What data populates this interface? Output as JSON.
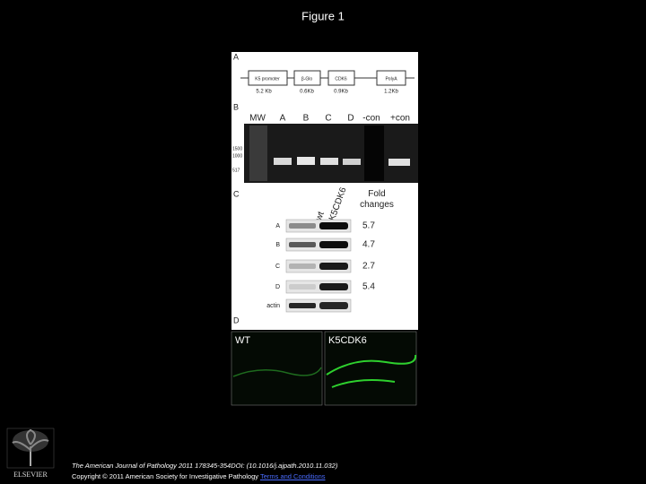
{
  "title": "Figure 1",
  "figure": {
    "panel_a": {
      "label": "A",
      "elements": [
        "K5 promoter",
        "β-Glo",
        "CDK6",
        "PolyA"
      ],
      "sizes": [
        "5.2 Kb",
        "0.6Kb",
        "0.9Kb",
        "1.2Kb"
      ]
    },
    "panel_b": {
      "label": "B",
      "lanes": [
        "MW",
        "A",
        "B",
        "C",
        "D",
        "-con",
        "+con"
      ],
      "markers": [
        "1500",
        "1000",
        "517"
      ]
    },
    "panel_c": {
      "label": "C",
      "columns": [
        "wt",
        "K5CDK6"
      ],
      "fold_header": "Fold changes",
      "rows": [
        "A",
        "B",
        "C",
        "D",
        "actin"
      ],
      "fold_changes": [
        "5.7",
        "4.7",
        "2.7",
        "5.4"
      ]
    },
    "panel_d": {
      "label": "D",
      "images": [
        "WT",
        "K5CDK6"
      ]
    }
  },
  "publisher": "ELSEVIER",
  "citation": "The American Journal of Pathology 2011 178345-354DOI: (10.1016/j.ajpath.2010.11.032)",
  "copyright": "Copyright © 2011 American Society for Investigative Pathology",
  "terms_link": "Terms and Conditions"
}
